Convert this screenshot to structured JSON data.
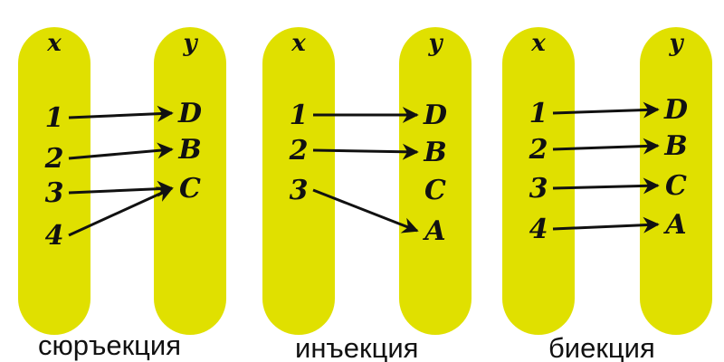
{
  "colors": {
    "set_fill": "#e0e000",
    "arrow": "#111111",
    "label": "#111111"
  },
  "diagrams": [
    {
      "caption": "сюръекция",
      "x_header": "x",
      "y_header": "y",
      "x_elements": [
        "1",
        "2",
        "3",
        "4"
      ],
      "y_elements": [
        "D",
        "B",
        "C"
      ],
      "mapping": [
        {
          "from": "1",
          "to": "D"
        },
        {
          "from": "2",
          "to": "B"
        },
        {
          "from": "3",
          "to": "C"
        },
        {
          "from": "4",
          "to": "C"
        }
      ]
    },
    {
      "caption": "инъекция",
      "x_header": "x",
      "y_header": "y",
      "x_elements": [
        "1",
        "2",
        "3"
      ],
      "y_elements": [
        "D",
        "B",
        "C",
        "A"
      ],
      "mapping": [
        {
          "from": "1",
          "to": "D"
        },
        {
          "from": "2",
          "to": "B"
        },
        {
          "from": "3",
          "to": "A"
        }
      ]
    },
    {
      "caption": "биекция",
      "x_header": "x",
      "y_header": "y",
      "x_elements": [
        "1",
        "2",
        "3",
        "4"
      ],
      "y_elements": [
        "D",
        "B",
        "C",
        "A"
      ],
      "mapping": [
        {
          "from": "1",
          "to": "D"
        },
        {
          "from": "2",
          "to": "B"
        },
        {
          "from": "3",
          "to": "C"
        },
        {
          "from": "4",
          "to": "A"
        }
      ]
    }
  ]
}
